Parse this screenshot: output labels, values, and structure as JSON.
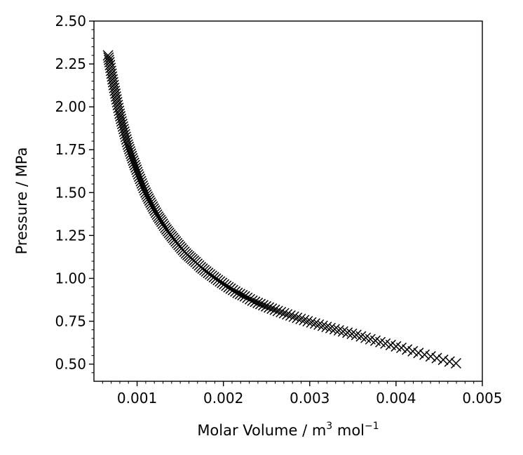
{
  "chart_data": {
    "type": "scatter",
    "xlabel": "Molar Volume / m",
    "xlabel_sup": "3",
    "xlabel_rest": " mol",
    "xlabel_sup2": "−1",
    "ylabel": "Pressure / MPa",
    "xlim": [
      0.0005,
      0.005
    ],
    "ylim": [
      0.4,
      2.5
    ],
    "xticks": [
      0.001,
      0.002,
      0.003,
      0.004,
      0.005
    ],
    "xtick_labels": [
      "0.001",
      "0.002",
      "0.003",
      "0.004",
      "0.005"
    ],
    "yticks": [
      0.5,
      0.75,
      1.0,
      1.25,
      1.5,
      1.75,
      2.0,
      2.25,
      2.5
    ],
    "ytick_labels": [
      "0.50",
      "0.75",
      "1.00",
      "1.25",
      "1.50",
      "1.75",
      "2.00",
      "2.25",
      "2.50"
    ],
    "marker": "x",
    "color": "#000000",
    "grid": false,
    "series": [
      {
        "x": [
          0.000663,
          0.00068,
          0.000698,
          0.000716,
          0.000735,
          0.000755,
          0.000776,
          0.000798,
          0.00082,
          0.000844,
          0.000868,
          0.000893,
          0.000919,
          0.000946,
          0.000974,
          0.001003,
          0.001034,
          0.001065,
          0.001098,
          0.001132,
          0.001168,
          0.001205,
          0.001244,
          0.001284,
          0.001326,
          0.00137,
          0.001416,
          0.001464,
          0.001514,
          0.001566,
          0.001621,
          0.001678,
          0.001738,
          0.001801,
          0.001867,
          0.001936,
          0.002008,
          0.002084,
          0.002164,
          0.002248,
          0.002336,
          0.002429,
          0.002527,
          0.00263,
          0.002739,
          0.002854,
          0.002976,
          0.003105,
          0.003241,
          0.003386,
          0.00354,
          0.003703,
          0.003877,
          0.004062,
          0.00426,
          0.004472,
          0.004695
        ],
        "y": [
          2.3,
          2.26,
          2.21,
          2.16,
          2.11,
          2.06,
          2.01,
          1.96,
          1.915,
          1.87,
          1.825,
          1.78,
          1.74,
          1.7,
          1.66,
          1.62,
          1.58,
          1.54,
          1.5,
          1.465,
          1.43,
          1.395,
          1.36,
          1.33,
          1.295,
          1.265,
          1.235,
          1.205,
          1.175,
          1.145,
          1.12,
          1.095,
          1.065,
          1.04,
          1.015,
          0.99,
          0.965,
          0.94,
          0.915,
          0.895,
          0.87,
          0.85,
          0.83,
          0.81,
          0.79,
          0.77,
          0.75,
          0.73,
          0.71,
          0.69,
          0.67,
          0.645,
          0.62,
          0.595,
          0.565,
          0.535,
          0.505
        ]
      }
    ]
  }
}
